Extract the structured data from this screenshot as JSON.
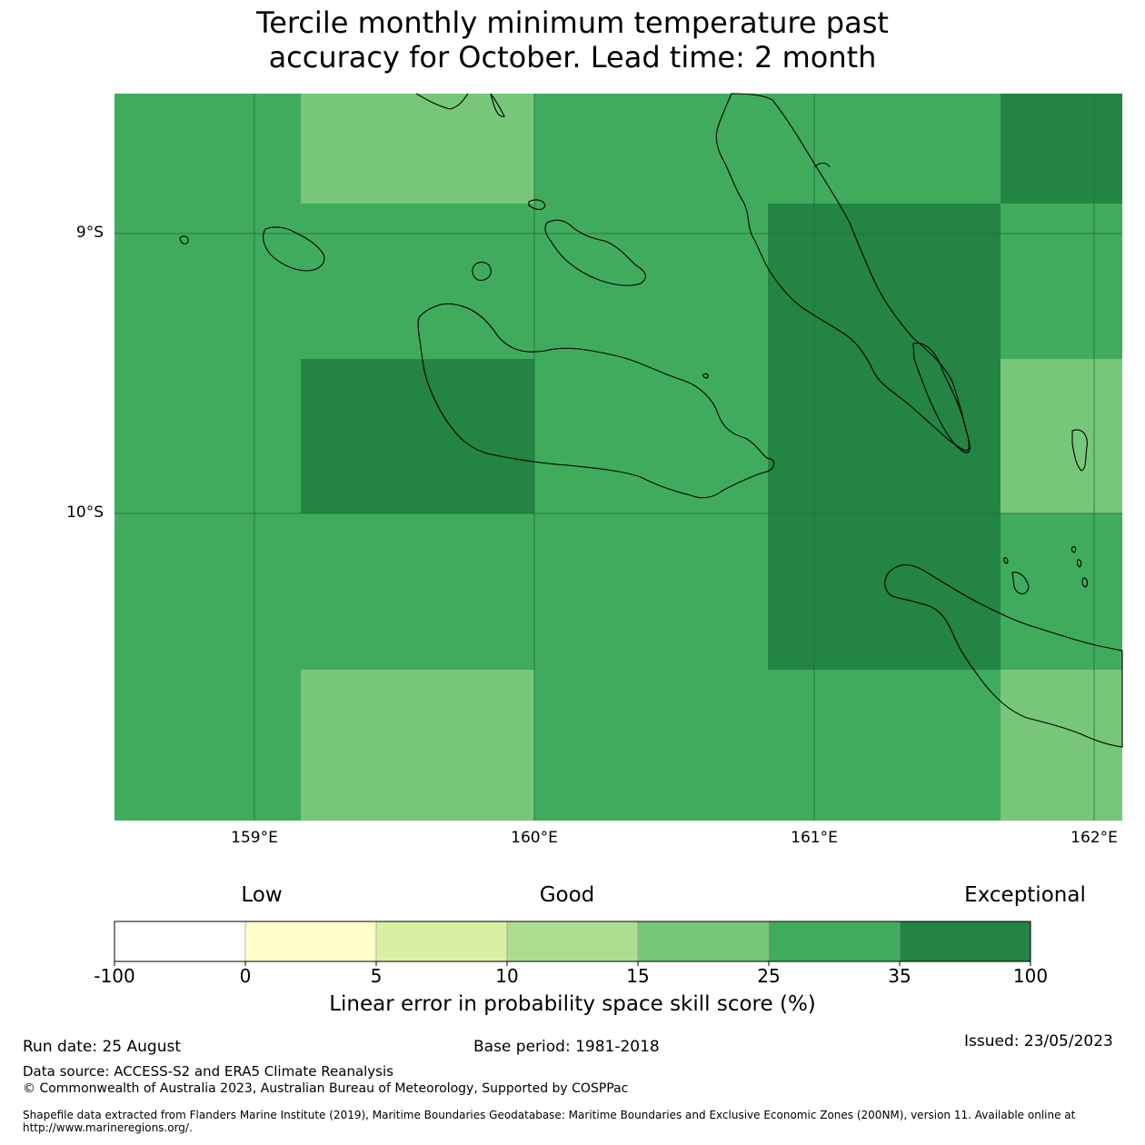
{
  "title": {
    "line1": "Tercile monthly minimum temperature past",
    "line2": "accuracy for October. Lead time: 2 month"
  },
  "map": {
    "lat_labels": [
      "9°S",
      "10°S"
    ],
    "lon_labels": [
      "159°E",
      "160°E",
      "161°E",
      "162°E"
    ],
    "colors": {
      "25-35": "#41ab5d",
      "35-100": "#238443",
      "15-25": "#78c679",
      "coastline": "#000000",
      "gridline": "#1f6e3a"
    },
    "grid_cells": [
      [
        "25-35",
        "15-25",
        "25-35",
        "25-35",
        "35-100"
      ],
      [
        "25-35",
        "25-35",
        "25-35",
        "35-100",
        "25-35"
      ],
      [
        "25-35",
        "35-100",
        "25-35",
        "35-100",
        "15-25"
      ],
      [
        "25-35",
        "25-35",
        "25-35",
        "35-100",
        "25-35"
      ],
      [
        "25-35",
        "15-25",
        "25-35",
        "25-35",
        "15-25"
      ]
    ]
  },
  "legend": {
    "levels": [
      "Low",
      "Good",
      "Exceptional"
    ],
    "bins": [
      {
        "color": "#ffffff"
      },
      {
        "color": "#ffffcc"
      },
      {
        "color": "#d9f0a3"
      },
      {
        "color": "#addd8e"
      },
      {
        "color": "#78c679"
      },
      {
        "color": "#41ab5d"
      },
      {
        "color": "#238443"
      }
    ],
    "ticks": [
      "-100",
      "0",
      "5",
      "10",
      "15",
      "25",
      "35",
      "100"
    ],
    "title": "Linear error in probability space skill score (%)"
  },
  "footer": {
    "run_date": "Run date: 25 August",
    "base_period": "Base period: 1981-2018",
    "issued": "Issued: 23/05/2023",
    "data_source": "Data source: ACCESS-S2 and ERA5 Climate Reanalysis",
    "copyright": "© Commonwealth of Australia 2023, Australian Bureau of Meteorology, Supported by COSPPac",
    "shapefile": "Shapefile data extracted from Flanders Marine Institute (2019), Maritime Boundaries Geodatabase: Maritime Boundaries and Exclusive Economic Zones (200NM), version 11. Available online at http://www.marineregions.org/."
  }
}
